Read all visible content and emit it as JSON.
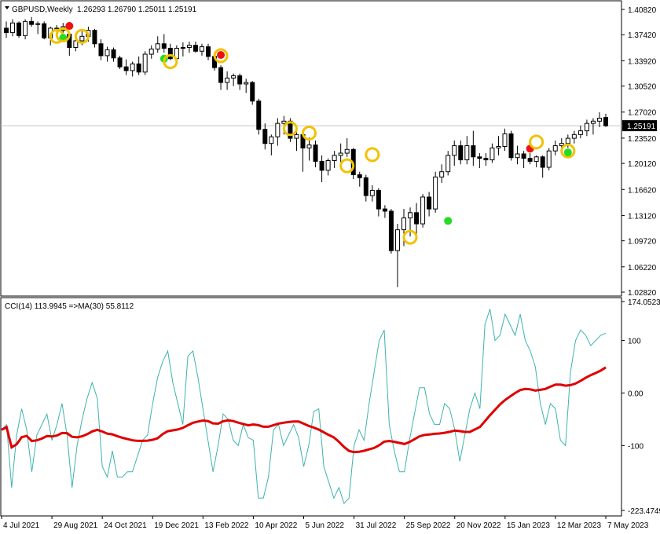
{
  "header": {
    "symbol": "GBPUSD,Weekly",
    "ohlc": "1.26293 1.26790 1.25011 1.25191",
    "indicator_label": "CCI(14) 113.9945   =>MA(30) 55.8112"
  },
  "colors": {
    "bull_body": "#ffffff",
    "bear_body": "#000000",
    "cci_line": "#3db3b0",
    "ma_line": "#e00000",
    "marker_ring": "#f2c200",
    "marker_green": "#22dd22",
    "marker_red": "#ee1111",
    "grid": "#c8c8c8",
    "current_price_bg": "#000000"
  },
  "chart_data": [
    {
      "type": "candlestick",
      "title": "GBPUSD,Weekly",
      "ylim": [
        1.0282,
        1.4082
      ],
      "y_ticks": [
        "1.40820",
        "1.37420",
        "1.33920",
        "1.30520",
        "1.27020",
        "1.23520",
        "1.20120",
        "1.16620",
        "1.13120",
        "1.09720",
        "1.06220",
        "1.02820"
      ],
      "current_price": "1.25191",
      "x_labels": [
        "4 Jul 2021",
        "29 Aug 2021",
        "24 Oct 2021",
        "19 Dec 2021",
        "13 Feb 2022",
        "10 Apr 2022",
        "5 Jun 2022",
        "31 Jul 2022",
        "25 Sep 2022",
        "20 Nov 2022",
        "15 Jan 2023",
        "12 Mar 2023",
        "7 May 2023"
      ],
      "candles": [
        {
          "o": 1.383,
          "h": 1.392,
          "l": 1.37,
          "c": 1.377
        },
        {
          "o": 1.377,
          "h": 1.395,
          "l": 1.372,
          "c": 1.39
        },
        {
          "o": 1.39,
          "h": 1.392,
          "l": 1.37,
          "c": 1.373
        },
        {
          "o": 1.373,
          "h": 1.395,
          "l": 1.368,
          "c": 1.392
        },
        {
          "o": 1.392,
          "h": 1.398,
          "l": 1.385,
          "c": 1.388
        },
        {
          "o": 1.388,
          "h": 1.392,
          "l": 1.375,
          "c": 1.389
        },
        {
          "o": 1.389,
          "h": 1.392,
          "l": 1.368,
          "c": 1.37
        },
        {
          "o": 1.37,
          "h": 1.385,
          "l": 1.36,
          "c": 1.383
        },
        {
          "o": 1.383,
          "h": 1.387,
          "l": 1.376,
          "c": 1.38
        },
        {
          "o": 1.38,
          "h": 1.39,
          "l": 1.37,
          "c": 1.385
        },
        {
          "o": 1.375,
          "h": 1.378,
          "l": 1.346,
          "c": 1.357
        },
        {
          "o": 1.357,
          "h": 1.372,
          "l": 1.352,
          "c": 1.366
        },
        {
          "o": 1.366,
          "h": 1.38,
          "l": 1.36,
          "c": 1.372
        },
        {
          "o": 1.372,
          "h": 1.385,
          "l": 1.365,
          "c": 1.38
        },
        {
          "o": 1.38,
          "h": 1.382,
          "l": 1.357,
          "c": 1.362
        },
        {
          "o": 1.362,
          "h": 1.368,
          "l": 1.34,
          "c": 1.346
        },
        {
          "o": 1.346,
          "h": 1.358,
          "l": 1.338,
          "c": 1.354
        },
        {
          "o": 1.354,
          "h": 1.357,
          "l": 1.338,
          "c": 1.343
        },
        {
          "o": 1.343,
          "h": 1.346,
          "l": 1.328,
          "c": 1.331
        },
        {
          "o": 1.331,
          "h": 1.341,
          "l": 1.32,
          "c": 1.326
        },
        {
          "o": 1.326,
          "h": 1.338,
          "l": 1.318,
          "c": 1.335
        },
        {
          "o": 1.335,
          "h": 1.345,
          "l": 1.32,
          "c": 1.324
        },
        {
          "o": 1.324,
          "h": 1.352,
          "l": 1.32,
          "c": 1.348
        },
        {
          "o": 1.348,
          "h": 1.36,
          "l": 1.342,
          "c": 1.355
        },
        {
          "o": 1.355,
          "h": 1.372,
          "l": 1.35,
          "c": 1.362
        },
        {
          "o": 1.362,
          "h": 1.375,
          "l": 1.35,
          "c": 1.356
        },
        {
          "o": 1.356,
          "h": 1.362,
          "l": 1.34,
          "c": 1.342
        },
        {
          "o": 1.342,
          "h": 1.36,
          "l": 1.338,
          "c": 1.356
        },
        {
          "o": 1.356,
          "h": 1.364,
          "l": 1.345,
          "c": 1.357
        },
        {
          "o": 1.357,
          "h": 1.365,
          "l": 1.35,
          "c": 1.36
        },
        {
          "o": 1.36,
          "h": 1.365,
          "l": 1.35,
          "c": 1.352
        },
        {
          "o": 1.352,
          "h": 1.362,
          "l": 1.346,
          "c": 1.358
        },
        {
          "o": 1.358,
          "h": 1.362,
          "l": 1.34,
          "c": 1.345
        },
        {
          "o": 1.345,
          "h": 1.348,
          "l": 1.326,
          "c": 1.33
        },
        {
          "o": 1.33,
          "h": 1.333,
          "l": 1.3,
          "c": 1.31
        },
        {
          "o": 1.31,
          "h": 1.325,
          "l": 1.3,
          "c": 1.316
        },
        {
          "o": 1.316,
          "h": 1.322,
          "l": 1.305,
          "c": 1.319
        },
        {
          "o": 1.319,
          "h": 1.322,
          "l": 1.3,
          "c": 1.308
        },
        {
          "o": 1.308,
          "h": 1.315,
          "l": 1.296,
          "c": 1.31
        },
        {
          "o": 1.31,
          "h": 1.312,
          "l": 1.28,
          "c": 1.285
        },
        {
          "o": 1.285,
          "h": 1.288,
          "l": 1.24,
          "c": 1.247
        },
        {
          "o": 1.247,
          "h": 1.255,
          "l": 1.22,
          "c": 1.228
        },
        {
          "o": 1.228,
          "h": 1.24,
          "l": 1.212,
          "c": 1.237
        },
        {
          "o": 1.237,
          "h": 1.262,
          "l": 1.225,
          "c": 1.255
        },
        {
          "o": 1.255,
          "h": 1.265,
          "l": 1.24,
          "c": 1.258
        },
        {
          "o": 1.258,
          "h": 1.262,
          "l": 1.23,
          "c": 1.235
        },
        {
          "o": 1.235,
          "h": 1.245,
          "l": 1.218,
          "c": 1.24
        },
        {
          "o": 1.24,
          "h": 1.245,
          "l": 1.19,
          "c": 1.222
        },
        {
          "o": 1.222,
          "h": 1.236,
          "l": 1.205,
          "c": 1.226
        },
        {
          "o": 1.226,
          "h": 1.232,
          "l": 1.196,
          "c": 1.204
        },
        {
          "o": 1.204,
          "h": 1.212,
          "l": 1.176,
          "c": 1.192
        },
        {
          "o": 1.192,
          "h": 1.208,
          "l": 1.185,
          "c": 1.205
        },
        {
          "o": 1.205,
          "h": 1.218,
          "l": 1.195,
          "c": 1.212
        },
        {
          "o": 1.212,
          "h": 1.228,
          "l": 1.2,
          "c": 1.215
        },
        {
          "o": 1.215,
          "h": 1.235,
          "l": 1.21,
          "c": 1.22
        },
        {
          "o": 1.22,
          "h": 1.222,
          "l": 1.18,
          "c": 1.186
        },
        {
          "o": 1.186,
          "h": 1.19,
          "l": 1.17,
          "c": 1.182
        },
        {
          "o": 1.182,
          "h": 1.186,
          "l": 1.15,
          "c": 1.158
        },
        {
          "o": 1.158,
          "h": 1.172,
          "l": 1.15,
          "c": 1.165
        },
        {
          "o": 1.165,
          "h": 1.168,
          "l": 1.13,
          "c": 1.14
        },
        {
          "o": 1.14,
          "h": 1.145,
          "l": 1.128,
          "c": 1.137
        },
        {
          "o": 1.137,
          "h": 1.14,
          "l": 1.08,
          "c": 1.084
        },
        {
          "o": 1.084,
          "h": 1.12,
          "l": 1.035,
          "c": 1.112
        },
        {
          "o": 1.112,
          "h": 1.14,
          "l": 1.09,
          "c": 1.128
        },
        {
          "o": 1.128,
          "h": 1.142,
          "l": 1.103,
          "c": 1.135
        },
        {
          "o": 1.135,
          "h": 1.148,
          "l": 1.105,
          "c": 1.12
        },
        {
          "o": 1.12,
          "h": 1.16,
          "l": 1.115,
          "c": 1.156
        },
        {
          "o": 1.156,
          "h": 1.163,
          "l": 1.13,
          "c": 1.14
        },
        {
          "o": 1.14,
          "h": 1.19,
          "l": 1.135,
          "c": 1.183
        },
        {
          "o": 1.183,
          "h": 1.2,
          "l": 1.175,
          "c": 1.19
        },
        {
          "o": 1.19,
          "h": 1.218,
          "l": 1.185,
          "c": 1.212
        },
        {
          "o": 1.212,
          "h": 1.232,
          "l": 1.198,
          "c": 1.225
        },
        {
          "o": 1.225,
          "h": 1.232,
          "l": 1.2,
          "c": 1.206
        },
        {
          "o": 1.206,
          "h": 1.238,
          "l": 1.2,
          "c": 1.225
        },
        {
          "o": 1.225,
          "h": 1.245,
          "l": 1.198,
          "c": 1.21
        },
        {
          "o": 1.21,
          "h": 1.215,
          "l": 1.195,
          "c": 1.208
        },
        {
          "o": 1.208,
          "h": 1.215,
          "l": 1.198,
          "c": 1.206
        },
        {
          "o": 1.206,
          "h": 1.228,
          "l": 1.202,
          "c": 1.222
        },
        {
          "o": 1.222,
          "h": 1.238,
          "l": 1.212,
          "c": 1.224
        },
        {
          "o": 1.224,
          "h": 1.248,
          "l": 1.218,
          "c": 1.241
        },
        {
          "o": 1.241,
          "h": 1.245,
          "l": 1.205,
          "c": 1.209
        },
        {
          "o": 1.209,
          "h": 1.225,
          "l": 1.2,
          "c": 1.214
        },
        {
          "o": 1.214,
          "h": 1.218,
          "l": 1.195,
          "c": 1.208
        },
        {
          "o": 1.208,
          "h": 1.215,
          "l": 1.2,
          "c": 1.204
        },
        {
          "o": 1.204,
          "h": 1.212,
          "l": 1.196,
          "c": 1.21
        },
        {
          "o": 1.21,
          "h": 1.212,
          "l": 1.182,
          "c": 1.196
        },
        {
          "o": 1.196,
          "h": 1.222,
          "l": 1.192,
          "c": 1.218
        },
        {
          "o": 1.218,
          "h": 1.232,
          "l": 1.212,
          "c": 1.225
        },
        {
          "o": 1.225,
          "h": 1.235,
          "l": 1.218,
          "c": 1.228
        },
        {
          "o": 1.228,
          "h": 1.24,
          "l": 1.222,
          "c": 1.235
        },
        {
          "o": 1.235,
          "h": 1.245,
          "l": 1.228,
          "c": 1.24
        },
        {
          "o": 1.24,
          "h": 1.252,
          "l": 1.235,
          "c": 1.245
        },
        {
          "o": 1.245,
          "h": 1.26,
          "l": 1.238,
          "c": 1.255
        },
        {
          "o": 1.255,
          "h": 1.262,
          "l": 1.24,
          "c": 1.258
        },
        {
          "o": 1.258,
          "h": 1.27,
          "l": 1.25,
          "c": 1.262
        },
        {
          "o": 1.26293,
          "h": 1.2679,
          "l": 1.25011,
          "c": 1.25191
        }
      ],
      "markers": [
        {
          "i": 8,
          "price": 1.372,
          "kind": "ring"
        },
        {
          "i": 9,
          "price": 1.37,
          "kind": "green"
        },
        {
          "i": 9,
          "price": 1.374,
          "kind": "ring"
        },
        {
          "i": 10,
          "price": 1.386,
          "kind": "red"
        },
        {
          "i": 12,
          "price": 1.372,
          "kind": "ring"
        },
        {
          "i": 25,
          "price": 1.342,
          "kind": "green"
        },
        {
          "i": 26,
          "price": 1.338,
          "kind": "ring"
        },
        {
          "i": 34,
          "price": 1.347,
          "kind": "red"
        },
        {
          "i": 34,
          "price": 1.346,
          "kind": "ring"
        },
        {
          "i": 45,
          "price": 1.248,
          "kind": "ring"
        },
        {
          "i": 48,
          "price": 1.242,
          "kind": "ring"
        },
        {
          "i": 54,
          "price": 1.198,
          "kind": "ring"
        },
        {
          "i": 58,
          "price": 1.213,
          "kind": "ring"
        },
        {
          "i": 64,
          "price": 1.102,
          "kind": "ring"
        },
        {
          "i": 70,
          "price": 1.124,
          "kind": "green"
        },
        {
          "i": 83,
          "price": 1.221,
          "kind": "red"
        },
        {
          "i": 84,
          "price": 1.23,
          "kind": "ring"
        },
        {
          "i": 89,
          "price": 1.218,
          "kind": "ring"
        },
        {
          "i": 89,
          "price": 1.216,
          "kind": "green"
        }
      ]
    },
    {
      "type": "line",
      "title": "CCI(14) 113.9945   =>MA(30) 55.8112",
      "ylim": [
        -223.4749,
        174.0523
      ],
      "y_ticks": [
        "174.0523",
        "100",
        "0.00",
        "-100",
        "-223.4749"
      ],
      "series": [
        {
          "name": "CCI(14)",
          "values": [
            -70,
            -60,
            -180,
            -80,
            -30,
            -70,
            -150,
            -80,
            -60,
            -40,
            -90,
            -60,
            -20,
            -80,
            -180,
            -100,
            -50,
            -10,
            20,
            -10,
            -140,
            -160,
            -110,
            -160,
            -160,
            -150,
            -150,
            -120,
            -90,
            -80,
            -20,
            30,
            60,
            80,
            20,
            -20,
            -60,
            70,
            80,
            30,
            -30,
            -90,
            -150,
            -100,
            -40,
            -50,
            -90,
            -100,
            -60,
            -85,
            -90,
            -200,
            -200,
            -160,
            -70,
            -60,
            -100,
            -80,
            -60,
            -85,
            -140,
            -100,
            -35,
            -30,
            -140,
            -170,
            -200,
            -180,
            -210,
            -200,
            -100,
            -70,
            -90,
            -20,
            40,
            100,
            120,
            -60,
            -110,
            -150,
            -150,
            -90,
            -40,
            10,
            10,
            -40,
            -60,
            -60,
            -20,
            -30,
            -70,
            -130,
            -80,
            -30,
            0,
            -30,
            130,
            160,
            100,
            110,
            150,
            130,
            110,
            150,
            100,
            80,
            50,
            -20,
            -60,
            -20,
            -30,
            -90,
            -100,
            40,
            100,
            120,
            110,
            90,
            100,
            110,
            113.99
          ],
          "values_note": ""
        }
      ]
    }
  ]
}
